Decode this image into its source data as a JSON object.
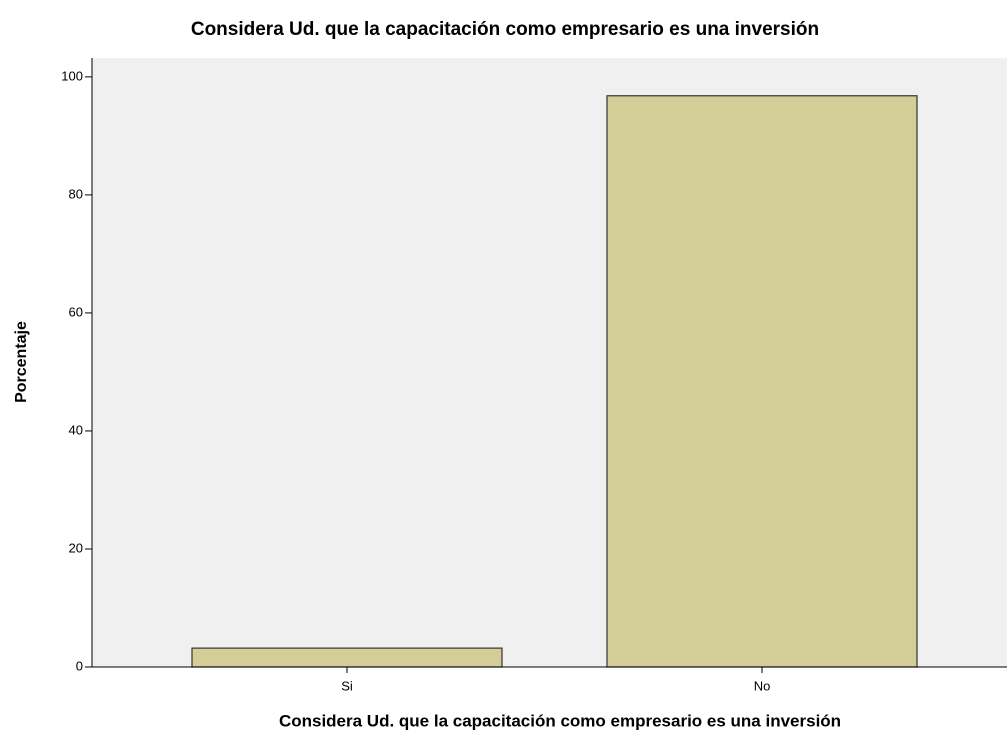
{
  "chart_data": {
    "type": "bar",
    "title": "Considera Ud. que la capacitación como empresario es una inversión",
    "x_label": "Considera Ud. que la capacitación como empresario es una inversión",
    "y_label": "Porcentaje",
    "categories": [
      "Si",
      "No"
    ],
    "values": [
      3.2,
      96.8
    ],
    "color": "#d3ce97",
    "ylim": [
      0,
      103.2
    ],
    "yticks": [
      0,
      20,
      40,
      60,
      80,
      100
    ]
  }
}
